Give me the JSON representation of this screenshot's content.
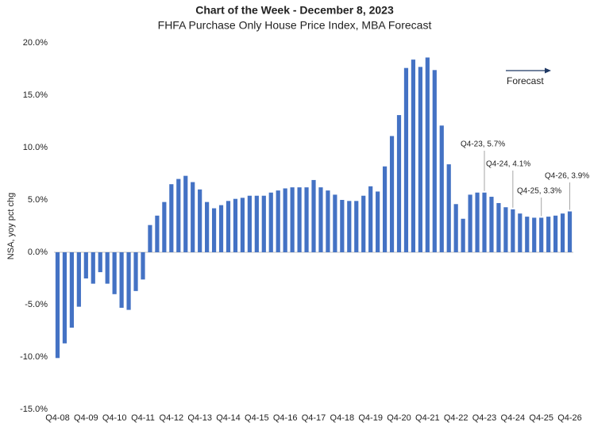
{
  "chart_data": {
    "type": "bar",
    "title": "Chart of the Week - December 8, 2023",
    "subtitle": "FHFA Purchase Only House Price Index, MBA Forecast",
    "y_label": "NSA, yoy pct chg",
    "color": "#4472c4",
    "categories": [
      "Q4-08",
      null,
      null,
      null,
      "Q4-09",
      null,
      null,
      null,
      "Q4-10",
      null,
      null,
      null,
      "Q4-11",
      null,
      null,
      null,
      "Q4-12",
      null,
      null,
      null,
      "Q4-13",
      null,
      null,
      null,
      "Q4-14",
      null,
      null,
      null,
      "Q4-15",
      null,
      null,
      null,
      "Q4-16",
      null,
      null,
      null,
      "Q4-17",
      null,
      null,
      null,
      "Q4-18",
      null,
      null,
      null,
      "Q4-19",
      null,
      null,
      null,
      "Q4-20",
      null,
      null,
      null,
      "Q4-21",
      null,
      null,
      null,
      "Q4-22",
      null,
      null,
      null,
      "Q4-23",
      null,
      null,
      null,
      "Q4-24",
      null,
      null,
      null,
      "Q4-25",
      null,
      null,
      null,
      "Q4-26"
    ],
    "values": [
      -10.1,
      -8.7,
      -7.2,
      -5.2,
      -2.5,
      -3.0,
      -1.9,
      -3.0,
      -4.0,
      -5.3,
      -5.5,
      -3.7,
      -2.6,
      2.6,
      3.5,
      4.8,
      6.5,
      7.0,
      7.3,
      6.7,
      6.0,
      4.8,
      4.2,
      4.5,
      4.9,
      5.1,
      5.2,
      5.4,
      5.4,
      5.4,
      5.7,
      5.9,
      6.1,
      6.2,
      6.2,
      6.2,
      6.9,
      6.2,
      5.9,
      5.5,
      5.0,
      4.9,
      4.9,
      5.4,
      6.3,
      5.8,
      8.2,
      11.1,
      13.1,
      17.6,
      18.4,
      17.7,
      18.6,
      17.4,
      12.1,
      8.4,
      4.6,
      3.2,
      5.5,
      5.7,
      5.7,
      5.3,
      4.7,
      4.3,
      4.1,
      3.7,
      3.4,
      3.3,
      3.3,
      3.4,
      3.5,
      3.7,
      3.9
    ],
    "ylim": [
      -15,
      20
    ],
    "yticks": [
      {
        "value": -15,
        "label": "-15.0%"
      },
      {
        "value": -10,
        "label": "-10.0%"
      },
      {
        "value": -5,
        "label": "-5.0%"
      },
      {
        "value": 0,
        "label": "0.0%"
      },
      {
        "value": 5,
        "label": "5.0%"
      },
      {
        "value": 10,
        "label": "10.0%"
      },
      {
        "value": 15,
        "label": "15.0%"
      },
      {
        "value": 20,
        "label": "20.0%"
      }
    ],
    "annotations": [
      "Q4-23, 5.7%",
      "Q4-24, 4.1%",
      "Q4-25, 3.3%",
      "Q4-26, 3.9%"
    ],
    "forecast_label": "Forecast"
  }
}
